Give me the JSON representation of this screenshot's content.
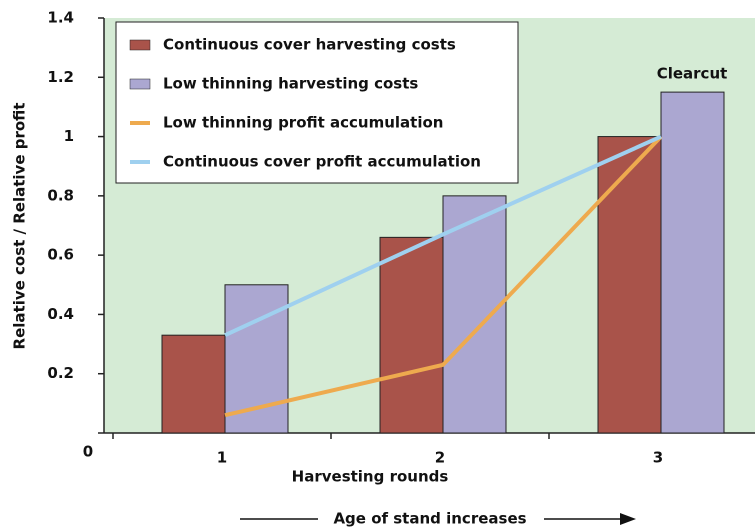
{
  "chart_data": {
    "type": "bar",
    "categories": [
      "1",
      "2",
      "3"
    ],
    "series": [
      {
        "name": "Continuous cover harvesting costs",
        "type": "bar",
        "color": "#a9534a",
        "values": [
          0.33,
          0.66,
          1.0
        ]
      },
      {
        "name": "Low thinning harvesting costs",
        "type": "bar",
        "color": "#aba7d1",
        "values": [
          0.5,
          0.8,
          1.15
        ]
      },
      {
        "name": "Low thinning profit accumulation",
        "type": "line",
        "color": "#eeaa4e",
        "values": [
          0.06,
          0.23,
          1.0
        ]
      },
      {
        "name": "Continuous cover profit accumulation",
        "type": "line",
        "color": "#9fd0ef",
        "values": [
          0.33,
          0.67,
          1.0
        ]
      }
    ],
    "ylim": [
      0,
      1.4
    ],
    "yticks": [
      0,
      0.2,
      0.4,
      0.6,
      0.8,
      1,
      1.2,
      1.4
    ],
    "xlabel": "Harvesting rounds",
    "ylabel": "Relative cost / Relative profit",
    "annotation": "Clearcut",
    "footer": "Age of stand increases",
    "legend": "upper left"
  }
}
